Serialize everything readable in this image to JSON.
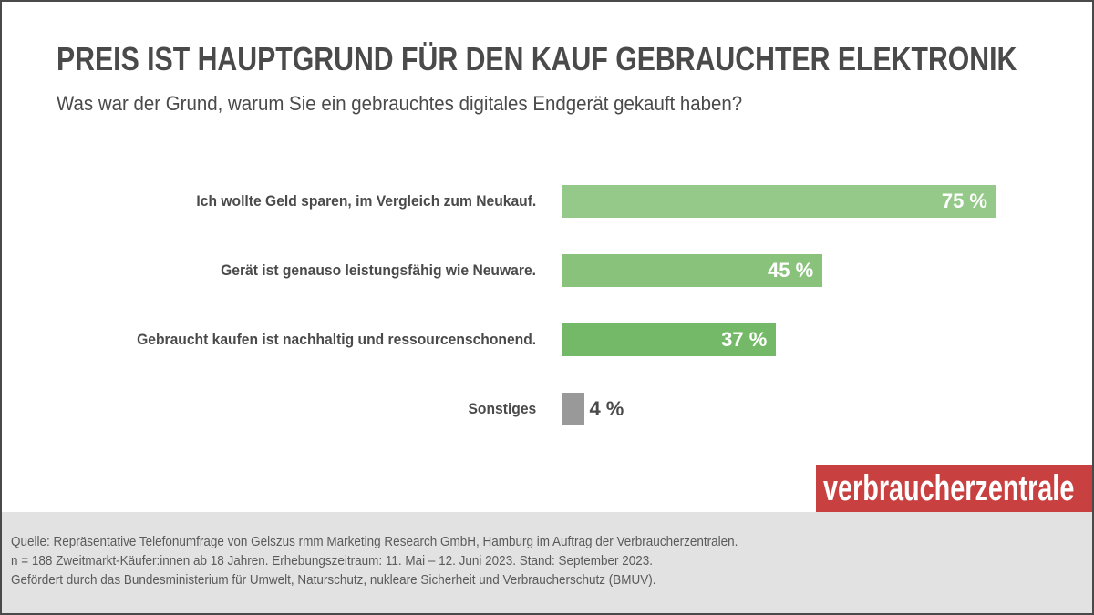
{
  "title": "PREIS IST HAUPTGRUND FÜR DEN KAUF GEBRAUCHTER ELEKTRONIK",
  "subtitle": "Was war der Grund, warum Sie ein gebrauchtes digitales Endgerät gekauft haben?",
  "chart_data": {
    "type": "bar",
    "orientation": "horizontal",
    "categories": [
      "Ich wollte Geld sparen, im Vergleich zum Neukauf.",
      "Gerät ist genauso leistungsfähig wie Neuware.",
      "Gebraucht kaufen ist nachhaltig und ressourcenschonend.",
      "Sonstiges"
    ],
    "values": [
      75,
      45,
      37,
      4
    ],
    "value_labels": [
      "75 %",
      "45 %",
      "37 %",
      "4 %"
    ],
    "unit": "%",
    "colors": [
      "#95c98a",
      "#88c27b",
      "#74b967",
      "#999999"
    ],
    "grid": false
  },
  "logo": "verbraucherzentrale",
  "logo_color": "#c84040",
  "footer": [
    "Quelle: Repräsentative  Telefonumfrage von Gelszus rmm Marketing Research GmbH, Hamburg im Auftrag der Verbraucherzentralen.",
    "n = 188 Zweitmarkt-Käufer:innen ab 18 Jahren. Erhebungszeitraum: 11. Mai – 12. Juni 2023. Stand: September 2023.",
    "Gefördert durch das Bundesministerium  für Umwelt, Naturschutz,  nukleare Sicherheit und Verbraucherschutz (BMUV)."
  ]
}
